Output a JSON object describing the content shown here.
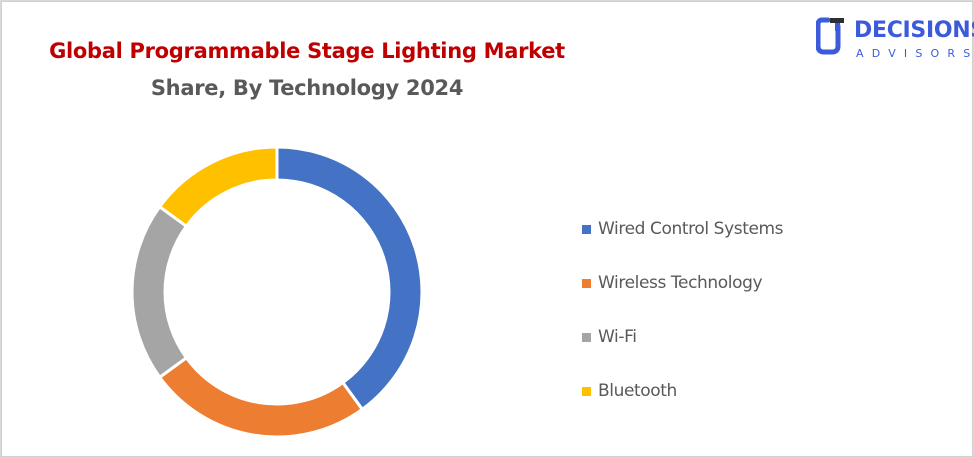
{
  "chart_data": {
    "type": "pie",
    "subtype": "donut",
    "title": "Global Programmable Stage Lighting Market",
    "subtitle": "Share, By Technology 2024",
    "categories": [
      "Wired Control Systems",
      "Wireless Technology",
      "Wi-Fi",
      "Bluetooth"
    ],
    "values": [
      40,
      25,
      20,
      15
    ],
    "unit": "%",
    "colors": [
      "#4472c4",
      "#ed7d31",
      "#a5a5a5",
      "#ffc000"
    ],
    "legend_position": "right",
    "data_labels": false
  },
  "header": {
    "title_line1": "Global Programmable Stage Lighting Market",
    "title_line2": "Share, By Technology 2024",
    "title_color": "#c00000",
    "subtitle_color": "#595959"
  },
  "logo": {
    "word": "DECISIONS",
    "sub": "ADVISORS",
    "color": "#3b5bdb"
  },
  "legend": {
    "items": [
      {
        "label": "Wired Control Systems",
        "color": "#4472c4"
      },
      {
        "label": "Wireless Technology",
        "color": "#ed7d31"
      },
      {
        "label": "Wi-Fi",
        "color": "#a5a5a5"
      },
      {
        "label": "Bluetooth",
        "color": "#ffc000"
      }
    ]
  }
}
